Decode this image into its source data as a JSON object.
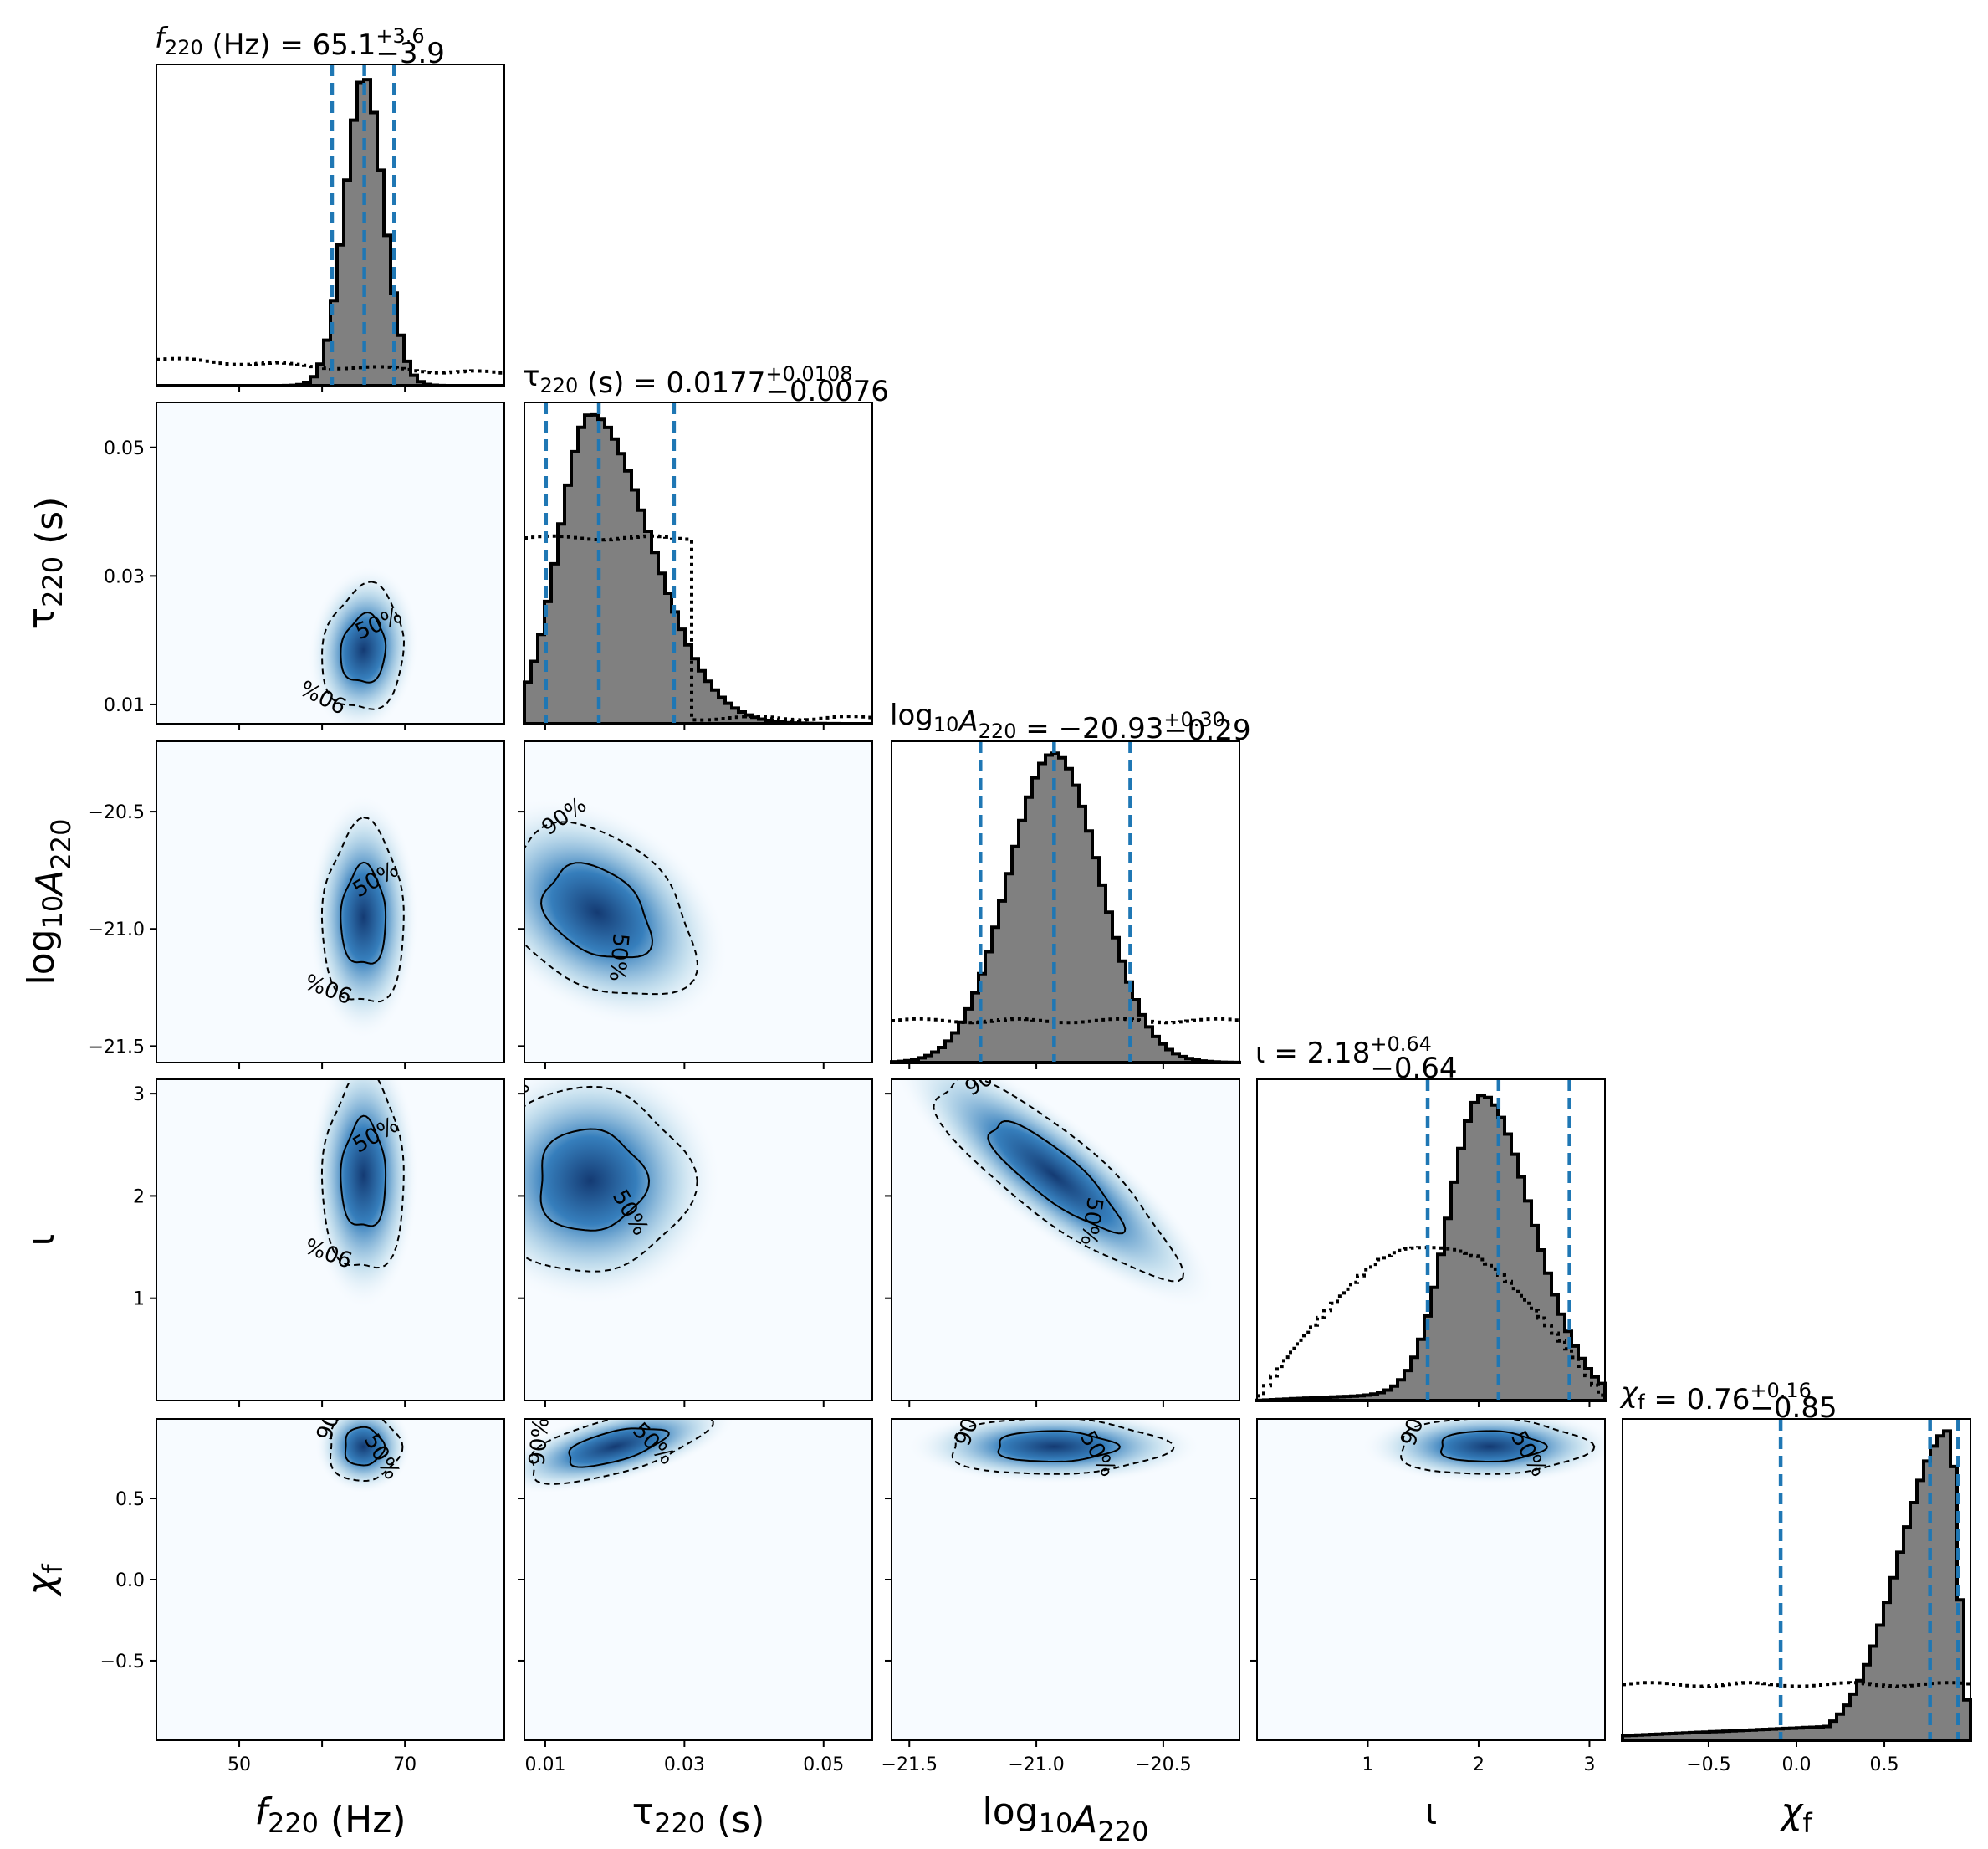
{
  "chart_data": {
    "type": "corner",
    "parameters": [
      {
        "key": "f220",
        "label": "f",
        "sub": "220",
        "unit": " (Hz)",
        "italic": true,
        "range": [
          40,
          82
        ],
        "ticks": [
          50,
          60,
          70
        ],
        "tick_labels": [
          "50",
          "",
          "70"
        ],
        "median": 65.1,
        "plus": "+3.6",
        "minus": "−3.9",
        "median_text": "65.1",
        "quantiles": [
          61.2,
          65.1,
          68.7
        ]
      },
      {
        "key": "tau220",
        "label": "τ",
        "sub": "220",
        "unit": " (s)",
        "italic": false,
        "range": [
          0.007,
          0.057
        ],
        "ticks": [
          0.01,
          0.03,
          0.05
        ],
        "tick_labels": [
          "0.01",
          "0.03",
          "0.05"
        ],
        "median": 0.0177,
        "plus": "+0.0108",
        "minus": "−0.0076",
        "median_text": "0.0177",
        "quantiles": [
          0.0101,
          0.0177,
          0.0285
        ]
      },
      {
        "key": "logA220",
        "label": "log",
        "sub": "10",
        "label2": "A",
        "sub2": "220",
        "unit": "",
        "italic": false,
        "range": [
          -21.57,
          -20.2
        ],
        "ticks": [
          -21.5,
          -21.0,
          -20.5
        ],
        "tick_labels": [
          "−21.5",
          "−21.0",
          "−20.5"
        ],
        "median": -20.93,
        "plus": "+0.30",
        "minus": "−0.29",
        "median_text": "−20.93",
        "quantiles": [
          -21.22,
          -20.93,
          -20.63
        ]
      },
      {
        "key": "iota",
        "label": "ι",
        "sub": "",
        "unit": "",
        "italic": false,
        "range": [
          0.0,
          3.14
        ],
        "ticks": [
          1,
          2,
          3
        ],
        "tick_labels": [
          "1",
          "2",
          "3"
        ],
        "median": 2.18,
        "plus": "+0.64",
        "minus": "−0.64",
        "median_text": "2.18",
        "quantiles": [
          1.54,
          2.18,
          2.82
        ]
      },
      {
        "key": "chif",
        "label": "χ",
        "sub": "f",
        "unit": "",
        "italic": true,
        "range": [
          -0.99,
          0.99
        ],
        "ticks": [
          -0.5,
          0.0,
          0.5
        ],
        "tick_labels": [
          "−0.5",
          "0.0",
          "0.5"
        ],
        "median": 0.76,
        "plus": "+0.16",
        "minus": "−0.85",
        "median_text": "0.76",
        "quantiles": [
          -0.09,
          0.76,
          0.92
        ]
      }
    ],
    "y_tick_labels": {
      "tau220": {
        "ticks": [
          0.01,
          0.03,
          0.05
        ],
        "labels": [
          "0.01",
          "0.03",
          "0.05"
        ]
      },
      "logA220": {
        "ticks": [
          -21.5,
          -21.0,
          -20.5
        ],
        "labels": [
          "−21.5",
          "−21.0",
          "−20.5"
        ]
      },
      "iota": {
        "ticks": [
          1,
          2,
          3
        ],
        "labels": [
          "1",
          "2",
          "3"
        ]
      },
      "chif": {
        "ticks": [
          -0.5,
          0.0,
          0.5
        ],
        "labels": [
          "−0.5",
          "0.0",
          "0.5"
        ]
      }
    },
    "posterior_1d": {
      "f220": {
        "type": "gaussian",
        "mu": 65.1,
        "sigma": 2.3
      },
      "tau220": {
        "type": "skew",
        "mode": 0.0165,
        "sigma_left": 0.0045,
        "sigma_right": 0.0085
      },
      "logA220": {
        "type": "gaussian",
        "mu": -20.93,
        "sigma": 0.18
      },
      "iota": {
        "type": "skew",
        "mode": 2.03,
        "sigma_left": 0.3,
        "sigma_right": 0.45
      },
      "chif": {
        "type": "skew",
        "mode": 0.87,
        "sigma_left": 0.28,
        "sigma_right": 0.05
      }
    },
    "prior_1d": {
      "f220": {
        "type": "decreasing"
      },
      "tau220": {
        "type": "flat_then_drop"
      },
      "logA220": {
        "type": "flat"
      },
      "iota": {
        "type": "sine"
      },
      "chif": {
        "type": "flat"
      }
    },
    "blobs_2d": [
      {
        "x": "f220",
        "y": "tau220",
        "mx": 65.0,
        "my": 0.0185,
        "sx": 2.3,
        "sy": 0.0045,
        "rho": 0.1
      },
      {
        "x": "f220",
        "y": "logA220",
        "mx": 65.0,
        "my": -20.95,
        "sx": 2.3,
        "sy": 0.18,
        "rho": 0.0
      },
      {
        "x": "tau220",
        "y": "logA220",
        "mx": 0.0175,
        "my": -20.93,
        "sx": 0.0065,
        "sy": 0.17,
        "rho": -0.35
      },
      {
        "x": "logA220",
        "y": "iota",
        "mx": -20.93,
        "my": 2.2,
        "sx": 0.22,
        "sy": 0.45,
        "rho": -0.85
      },
      {
        "x": "f220",
        "y": "iota",
        "mx": 65.0,
        "my": 2.2,
        "sx": 2.3,
        "sy": 0.45,
        "rho": 0.0
      },
      {
        "x": "tau220",
        "y": "iota",
        "mx": 0.0165,
        "my": 2.15,
        "sx": 0.0065,
        "sy": 0.42,
        "rho": 0.0
      },
      {
        "x": "f220",
        "y": "chif",
        "mx": 65.0,
        "my": 0.82,
        "sx": 2.0,
        "sy": 0.1,
        "rho": 0.0
      },
      {
        "x": "tau220",
        "y": "chif",
        "mx": 0.02,
        "my": 0.82,
        "sx": 0.006,
        "sy": 0.1,
        "rho": 0.6
      },
      {
        "x": "logA220",
        "y": "chif",
        "mx": -20.93,
        "my": 0.82,
        "sx": 0.2,
        "sy": 0.08,
        "rho": 0.0
      },
      {
        "x": "iota",
        "y": "chif",
        "mx": 2.1,
        "my": 0.82,
        "sx": 0.4,
        "sy": 0.08,
        "rho": 0.0
      }
    ],
    "contour_levels": [
      "50%",
      "90%"
    ],
    "colors": {
      "posterior_fill": "#808080",
      "posterior_edge": "#000000",
      "quantile_line": "#1f77b4",
      "density_high": "#08306b",
      "density_mid": "#2171b5",
      "density_low": "#f7fbff"
    }
  }
}
